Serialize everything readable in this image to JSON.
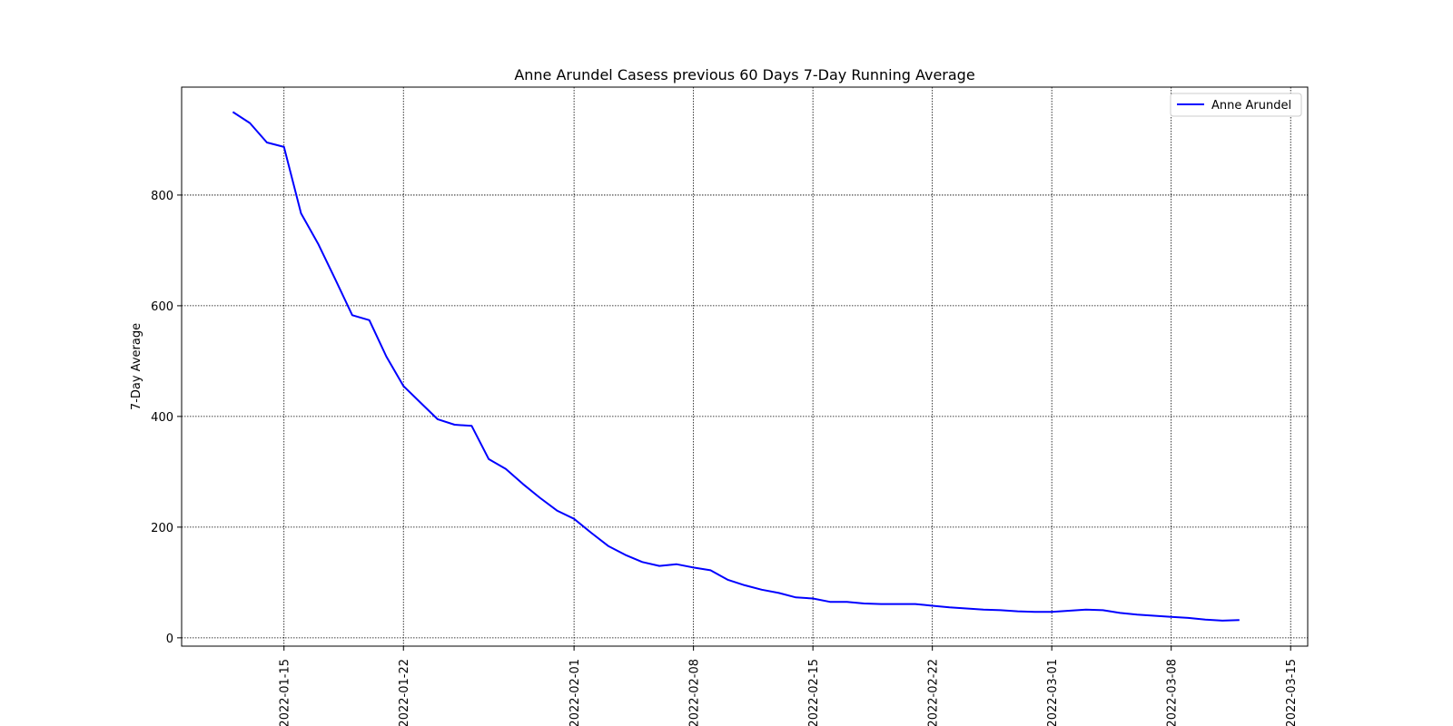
{
  "chart_data": {
    "type": "line",
    "title": "Anne Arundel Casess previous 60 Days 7-Day Running Average",
    "xlabel": "",
    "ylabel": "7-Day Average",
    "x_type": "date",
    "xlim": [
      "2022-01-09",
      "2022-03-16"
    ],
    "ylim": [
      -15,
      995
    ],
    "x_ticks": [
      "2022-01-15",
      "2022-01-22",
      "2022-02-01",
      "2022-02-08",
      "2022-02-15",
      "2022-02-22",
      "2022-03-01",
      "2022-03-08",
      "2022-03-15"
    ],
    "y_ticks": [
      0,
      200,
      400,
      600,
      800
    ],
    "grid": true,
    "legend_position": "top-right",
    "series": [
      {
        "name": "Anne Arundel",
        "color": "#0000ff",
        "x": [
          "2022-01-12",
          "2022-01-13",
          "2022-01-14",
          "2022-01-15",
          "2022-01-16",
          "2022-01-17",
          "2022-01-18",
          "2022-01-19",
          "2022-01-20",
          "2022-01-21",
          "2022-01-22",
          "2022-01-23",
          "2022-01-24",
          "2022-01-25",
          "2022-01-26",
          "2022-01-27",
          "2022-01-28",
          "2022-01-29",
          "2022-01-30",
          "2022-01-31",
          "2022-02-01",
          "2022-02-02",
          "2022-02-03",
          "2022-02-04",
          "2022-02-05",
          "2022-02-06",
          "2022-02-07",
          "2022-02-08",
          "2022-02-09",
          "2022-02-10",
          "2022-02-11",
          "2022-02-12",
          "2022-02-13",
          "2022-02-14",
          "2022-02-15",
          "2022-02-16",
          "2022-02-17",
          "2022-02-18",
          "2022-02-19",
          "2022-02-20",
          "2022-02-21",
          "2022-02-22",
          "2022-02-23",
          "2022-02-24",
          "2022-02-25",
          "2022-02-26",
          "2022-02-27",
          "2022-02-28",
          "2022-03-01",
          "2022-03-02",
          "2022-03-03",
          "2022-03-04",
          "2022-03-05",
          "2022-03-06",
          "2022-03-07",
          "2022-03-08",
          "2022-03-09",
          "2022-03-10",
          "2022-03-11",
          "2022-03-12"
        ],
        "y": [
          950,
          930,
          895,
          887,
          767,
          712,
          648,
          583,
          574,
          508,
          455,
          425,
          395,
          385,
          383,
          323,
          305,
          278,
          253,
          230,
          215,
          190,
          166,
          150,
          137,
          130,
          133,
          127,
          122,
          105,
          95,
          87,
          81,
          73,
          71,
          65,
          65,
          62,
          61,
          61,
          61,
          58,
          55,
          53,
          51,
          50,
          48,
          47,
          47,
          49,
          51,
          50,
          45,
          42,
          40,
          38,
          36,
          33,
          31,
          32
        ]
      }
    ]
  }
}
